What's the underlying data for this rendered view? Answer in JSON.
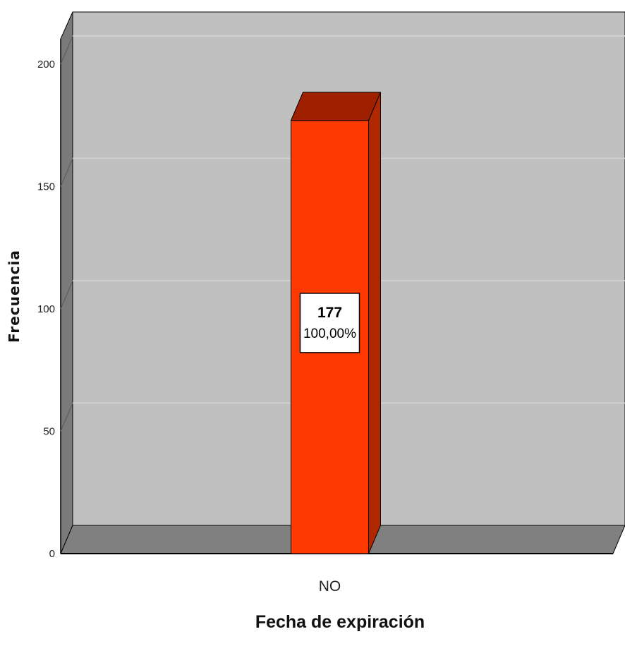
{
  "chart_data": {
    "type": "bar",
    "categories": [
      "NO"
    ],
    "values": [
      177
    ],
    "data_labels": [
      {
        "count": "177",
        "percent": "100,00%"
      }
    ],
    "xlabel": "Fecha de expiración",
    "ylabel": "Frecuencia",
    "ylim": [
      0,
      220
    ],
    "yticks": [
      0,
      50,
      100,
      150,
      200
    ],
    "grid": true,
    "three_d": true,
    "colors": {
      "bar_front": "#ff3a00",
      "bar_top": "#9f2000",
      "bar_side": "#b02800",
      "wall": "#c0c0c0",
      "floor": "#808080",
      "side_wall": "#7a7a7a",
      "gridline": "#d0d0d0"
    }
  }
}
